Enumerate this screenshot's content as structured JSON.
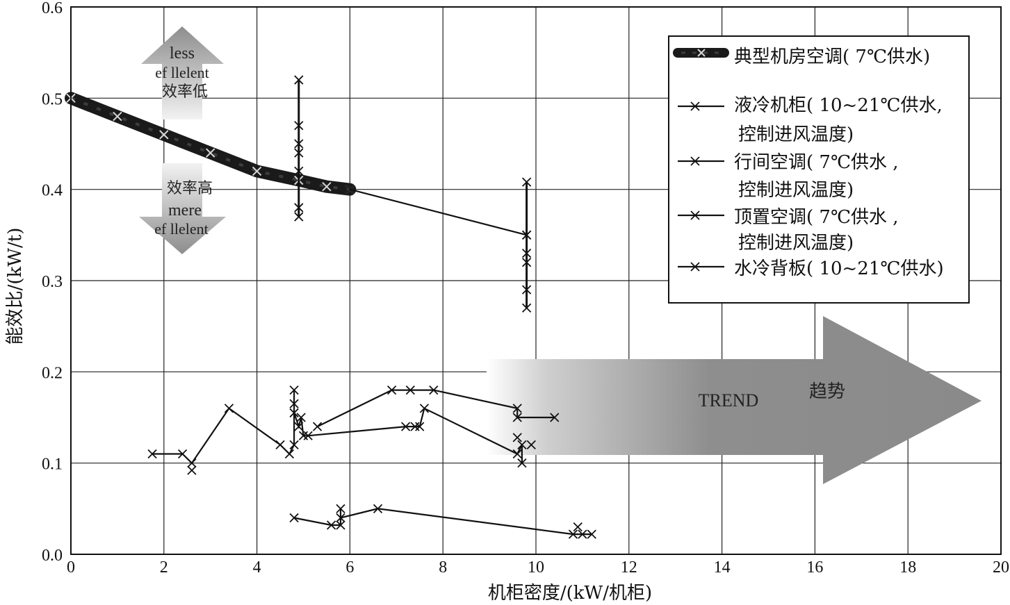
{
  "chart_data": {
    "type": "line",
    "xlabel": "机柜密度/(kW/机柜)",
    "ylabel": "能效比/(kW/t)",
    "xlim": [
      0,
      20
    ],
    "ylim": [
      0.0,
      0.6
    ],
    "x_ticks": [
      0,
      2,
      4,
      6,
      8,
      10,
      12,
      14,
      16,
      18,
      20
    ],
    "y_ticks": [
      0.0,
      0.1,
      0.2,
      0.3,
      0.4,
      0.5,
      0.6
    ],
    "x_tick_labels": [
      "0",
      "2",
      "4",
      "6",
      "8",
      "10",
      "12",
      "14",
      "16",
      "18",
      "20"
    ],
    "y_tick_labels": [
      "0.0",
      "0.1",
      "0.2",
      "0.3",
      "0.4",
      "0.5",
      "0.6"
    ],
    "grid": true,
    "legend_position": "top-right",
    "legend": [
      [
        "典型机房空调( 7℃供水)"
      ],
      [
        "液冷机柜( 10~21℃供水,",
        "控制进风温度)"
      ],
      [
        "行间空调( 7℃供水 ,",
        "控制进风温度)"
      ],
      [
        "顶置空调( 7℃供水 ,",
        "控制进风温度)"
      ],
      [
        "水冷背板( 10~21℃供水)"
      ]
    ],
    "series": [
      {
        "style": "thick-band",
        "points": [
          [
            0,
            0.5
          ],
          [
            1,
            0.48
          ],
          [
            2,
            0.46
          ],
          [
            3,
            0.44
          ],
          [
            4,
            0.42
          ],
          [
            4.9,
            0.41
          ],
          [
            5.5,
            0.403
          ],
          [
            6,
            0.4
          ]
        ]
      },
      {
        "style": "line-x",
        "points": [
          [
            6,
            0.4
          ],
          [
            9.8,
            0.35
          ]
        ]
      },
      {
        "style": "vertical-x",
        "points": [
          [
            4.9,
            0.52
          ],
          [
            4.9,
            0.47
          ],
          [
            4.9,
            0.45
          ],
          [
            4.9,
            0.44
          ],
          [
            4.9,
            0.42
          ],
          [
            4.9,
            0.38
          ],
          [
            4.9,
            0.37
          ]
        ]
      },
      {
        "style": "vertical-x",
        "points": [
          [
            9.8,
            0.408
          ],
          [
            9.8,
            0.35
          ],
          [
            9.8,
            0.33
          ],
          [
            9.8,
            0.32
          ],
          [
            9.8,
            0.29
          ],
          [
            9.8,
            0.27
          ]
        ]
      },
      {
        "style": "line-x",
        "points": [
          [
            1.75,
            0.11
          ],
          [
            2.4,
            0.11
          ],
          [
            2.6,
            0.1
          ],
          [
            3.4,
            0.16
          ],
          [
            4.5,
            0.12
          ],
          [
            4.7,
            0.11
          ],
          [
            4.8,
            0.12
          ],
          [
            4.8,
            0.18
          ],
          [
            4.8,
            0.165
          ],
          [
            4.8,
            0.155
          ],
          [
            4.9,
            0.14
          ],
          [
            4.95,
            0.15
          ],
          [
            5.0,
            0.13
          ],
          [
            5.1,
            0.13
          ],
          [
            7.2,
            0.14
          ],
          [
            7.4,
            0.14
          ],
          [
            7.5,
            0.14
          ],
          [
            7.6,
            0.16
          ],
          [
            9.6,
            0.11
          ],
          [
            9.7,
            0.12
          ],
          [
            9.7,
            0.1
          ]
        ]
      },
      {
        "style": "line-x",
        "points": [
          [
            5.3,
            0.14
          ],
          [
            6.9,
            0.18
          ],
          [
            7.3,
            0.18
          ],
          [
            7.8,
            0.18
          ],
          [
            9.6,
            0.16
          ],
          [
            9.6,
            0.15
          ],
          [
            10.4,
            0.15
          ]
        ]
      },
      {
        "style": "markers",
        "points": [
          [
            2.6,
            0.092
          ],
          [
            9.6,
            0.128
          ],
          [
            9.9,
            0.12
          ]
        ]
      },
      {
        "style": "line-x",
        "points": [
          [
            4.8,
            0.04
          ],
          [
            5.6,
            0.032
          ],
          [
            5.8,
            0.032
          ],
          [
            5.8,
            0.05
          ],
          [
            5.8,
            0.04
          ],
          [
            6.6,
            0.05
          ],
          [
            10.8,
            0.022
          ],
          [
            11.0,
            0.022
          ],
          [
            11.2,
            0.022
          ]
        ]
      },
      {
        "style": "markers",
        "points": [
          [
            10.9,
            0.03
          ]
        ]
      }
    ],
    "annotations": {
      "up_arrow": [
        "less",
        "ef llelent",
        "效率低"
      ],
      "down_arrow": [
        "效率高",
        "mere",
        "ef llelent"
      ],
      "trend_en": "TREND",
      "trend_cn": "趋势"
    }
  }
}
